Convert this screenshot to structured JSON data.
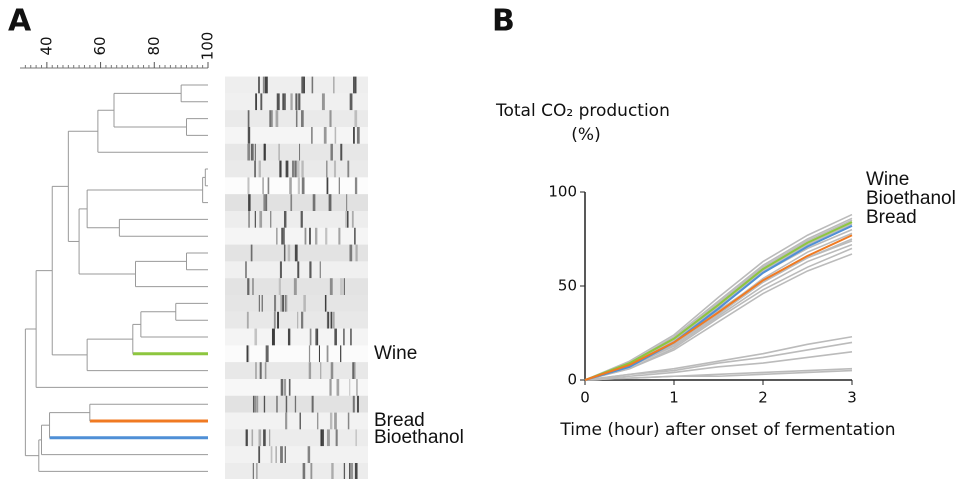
{
  "chart_data": [
    {
      "type": "dendrogram",
      "panel_label": "A",
      "xlim": [
        30,
        100
      ],
      "xticks": [
        40,
        60,
        80,
        100
      ],
      "minor_xticks": [
        32,
        34,
        36,
        38,
        42,
        44,
        46,
        48,
        50,
        52,
        54,
        56,
        58,
        62,
        64,
        66,
        68,
        70,
        72,
        74,
        76,
        78,
        82,
        84,
        86,
        88,
        90,
        92,
        94,
        96,
        98
      ],
      "leaf_count": 24,
      "merges": [
        {
          "left": 0,
          "right": 1,
          "height": 90
        },
        {
          "left": 2,
          "right": 3,
          "height": 92
        },
        {
          "left": 24,
          "right": 25,
          "height": 65
        },
        {
          "left": 26,
          "right": 4,
          "height": 59
        },
        {
          "left": 5,
          "right": 6,
          "height": 99
        },
        {
          "left": 28,
          "right": 7,
          "height": 98
        },
        {
          "left": 8,
          "right": 9,
          "height": 67
        },
        {
          "left": 29,
          "right": 30,
          "height": 55
        },
        {
          "left": 10,
          "right": 11,
          "height": 92
        },
        {
          "left": 32,
          "right": 12,
          "height": 73
        },
        {
          "left": 31,
          "right": 33,
          "height": 52
        },
        {
          "left": 27,
          "right": 34,
          "height": 48
        },
        {
          "left": 13,
          "right": 14,
          "height": 88
        },
        {
          "left": 36,
          "right": 15,
          "height": 75
        },
        {
          "left": 37,
          "right": 16,
          "height": 72
        },
        {
          "left": 38,
          "right": 17,
          "height": 55
        },
        {
          "left": 35,
          "right": 39,
          "height": 42
        },
        {
          "left": 40,
          "right": 18,
          "height": 36
        },
        {
          "left": 19,
          "right": 20,
          "height": 56
        },
        {
          "left": 42,
          "right": 21,
          "height": 41
        },
        {
          "left": 43,
          "right": 22,
          "height": 38
        },
        {
          "left": 44,
          "right": 23,
          "height": 37
        },
        {
          "left": 41,
          "right": 45,
          "height": 32
        }
      ],
      "highlights": [
        {
          "leaf": 16,
          "label": "Wine",
          "color": "#8dc63f"
        },
        {
          "leaf": 20,
          "label": "Bread",
          "color": "#f07a22"
        },
        {
          "leaf": 21,
          "label": "Bioethanol",
          "color": "#4f8fd6"
        }
      ]
    },
    {
      "type": "line",
      "panel_label": "B",
      "ylabel": "Total CO₂ production",
      "ylabel_unit": "(%)",
      "xlabel": "Time (hour) after onset of fermentation",
      "x": [
        0,
        0.5,
        1,
        1.5,
        2,
        2.5,
        3
      ],
      "xlim": [
        0,
        3
      ],
      "xticks": [
        0,
        1,
        2,
        3
      ],
      "ylim": [
        0,
        100
      ],
      "yticks": [
        0,
        50,
        100
      ],
      "other_series": [
        {
          "color": "#bbbbbb",
          "values": [
            0,
            10,
            24,
            44,
            63,
            77,
            88
          ]
        },
        {
          "color": "#bbbbbb",
          "values": [
            0,
            9,
            23,
            42,
            61,
            75,
            86
          ]
        },
        {
          "color": "#bbbbbb",
          "values": [
            0,
            8,
            21,
            39,
            57,
            70,
            80
          ]
        },
        {
          "color": "#bbbbbb",
          "values": [
            0,
            7,
            19,
            36,
            54,
            68,
            78
          ]
        },
        {
          "color": "#bbbbbb",
          "values": [
            0,
            8,
            20,
            37,
            53,
            65,
            74
          ]
        },
        {
          "color": "#bbbbbb",
          "values": [
            0,
            7,
            18,
            34,
            50,
            63,
            72
          ]
        },
        {
          "color": "#bbbbbb",
          "values": [
            0,
            6,
            17,
            33,
            48,
            60,
            70
          ]
        },
        {
          "color": "#bbbbbb",
          "values": [
            0,
            6,
            16,
            31,
            46,
            58,
            67
          ]
        },
        {
          "color": "#bbbbbb",
          "values": [
            0,
            7,
            19,
            35,
            52,
            65,
            75
          ]
        },
        {
          "color": "#bbbbbb",
          "values": [
            0,
            9,
            22,
            41,
            60,
            74,
            85
          ]
        },
        {
          "color": "#bbbbbb",
          "values": [
            0,
            8,
            22,
            40,
            58,
            72,
            83
          ]
        },
        {
          "color": "#bbbbbb",
          "values": [
            0,
            3,
            6,
            10,
            14,
            19,
            23
          ]
        },
        {
          "color": "#bbbbbb",
          "values": [
            0,
            3,
            5,
            9,
            12,
            16,
            20
          ]
        },
        {
          "color": "#bbbbbb",
          "values": [
            0,
            2,
            4,
            7,
            9,
            12,
            15
          ]
        },
        {
          "color": "#bbbbbb",
          "values": [
            0,
            1,
            2,
            3,
            4,
            5,
            6
          ]
        },
        {
          "color": "#bbbbbb",
          "values": [
            0,
            1,
            2,
            2,
            3,
            4,
            5
          ]
        }
      ],
      "series": [
        {
          "name": "Wine",
          "color": "#8dc63f",
          "values": [
            0,
            9,
            22,
            40,
            59,
            73,
            84
          ]
        },
        {
          "name": "Bioethanol",
          "color": "#4f8fd6",
          "values": [
            0,
            7,
            20,
            38,
            57,
            71,
            82
          ]
        },
        {
          "name": "Bread",
          "color": "#f07a22",
          "values": [
            0,
            8,
            20,
            36,
            53,
            66,
            77
          ]
        }
      ]
    }
  ]
}
